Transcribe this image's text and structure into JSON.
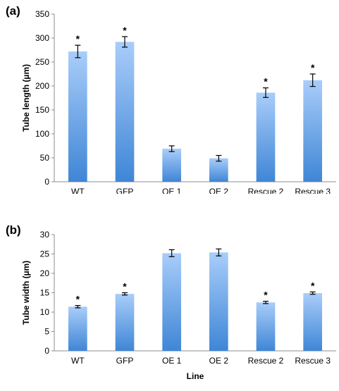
{
  "chart_data": [
    {
      "type": "bar",
      "panel_label": "(a)",
      "categories": [
        "WT",
        "GFP",
        "OE 1",
        "OE 2",
        "Rescue 2",
        "Rescue 3"
      ],
      "values": [
        272,
        292,
        69,
        49,
        186,
        212
      ],
      "errors": [
        13,
        11,
        6,
        6,
        10,
        13
      ],
      "significance": [
        "*",
        "*",
        "",
        "",
        "*",
        "*"
      ],
      "xlabel": "Line",
      "ylabel": "Tube length (µm)",
      "ylim": [
        0,
        350
      ],
      "yticks": [
        0,
        50,
        100,
        150,
        200,
        250,
        300,
        350
      ],
      "grid": false,
      "bar_color_top": "#a9cdfa",
      "bar_color_bottom": "#3f86d6"
    },
    {
      "type": "bar",
      "panel_label": "(b)",
      "categories": [
        "WT",
        "GFP",
        "OE 1",
        "OE 2",
        "Rescue 2",
        "Rescue 3"
      ],
      "values": [
        11.4,
        14.7,
        25.2,
        25.4,
        12.5,
        14.9
      ],
      "errors": [
        0.3,
        0.3,
        0.9,
        0.9,
        0.3,
        0.3
      ],
      "significance": [
        "*",
        "*",
        "",
        "",
        "*",
        "*"
      ],
      "xlabel": "Line",
      "ylabel": "Tube width (µm)",
      "ylim": [
        0,
        30
      ],
      "yticks": [
        0,
        5,
        10,
        15,
        20,
        25,
        30
      ],
      "grid": false,
      "bar_color_top": "#a9cdfa",
      "bar_color_bottom": "#3f86d6"
    }
  ]
}
